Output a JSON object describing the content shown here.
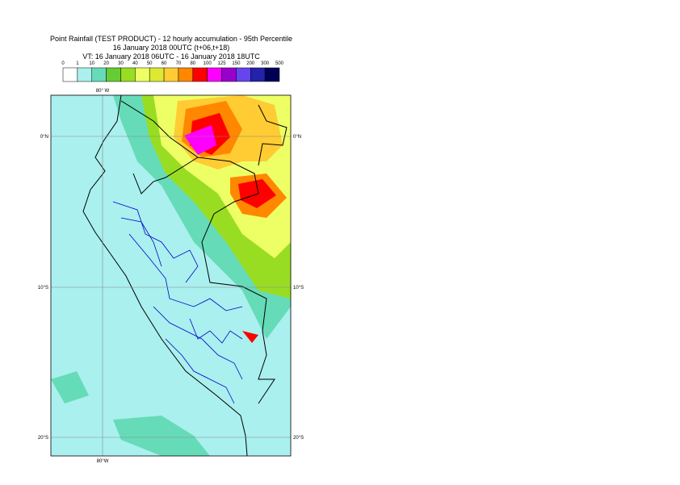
{
  "header": {
    "title": "Point Rainfall (TEST PRODUCT) - 12 hourly accumulation - 95th Percentile",
    "base_time": "16 January 2018 00UTC (t+06,t+18)",
    "valid_time": "VT: 16 January 2018 06UTC - 16 January 2018 18UTC"
  },
  "colorbar": {
    "labels": [
      0,
      1,
      10,
      20,
      30,
      40,
      50,
      60,
      70,
      80,
      100,
      125,
      150,
      200,
      300,
      500
    ],
    "colors": [
      "#ffffff",
      "#aaf0ee",
      "#66dbb8",
      "#66cc33",
      "#99dd22",
      "#eeff66",
      "#dde833",
      "#ffcc33",
      "#ff8800",
      "#ff0000",
      "#ff00ff",
      "#9900cc",
      "#6644ee",
      "#2222aa",
      "#000055"
    ]
  },
  "map": {
    "top_label": "80° W",
    "bottom_label": "80°W",
    "lat_labels": [
      "0°N",
      "10°S",
      "20°S"
    ]
  }
}
